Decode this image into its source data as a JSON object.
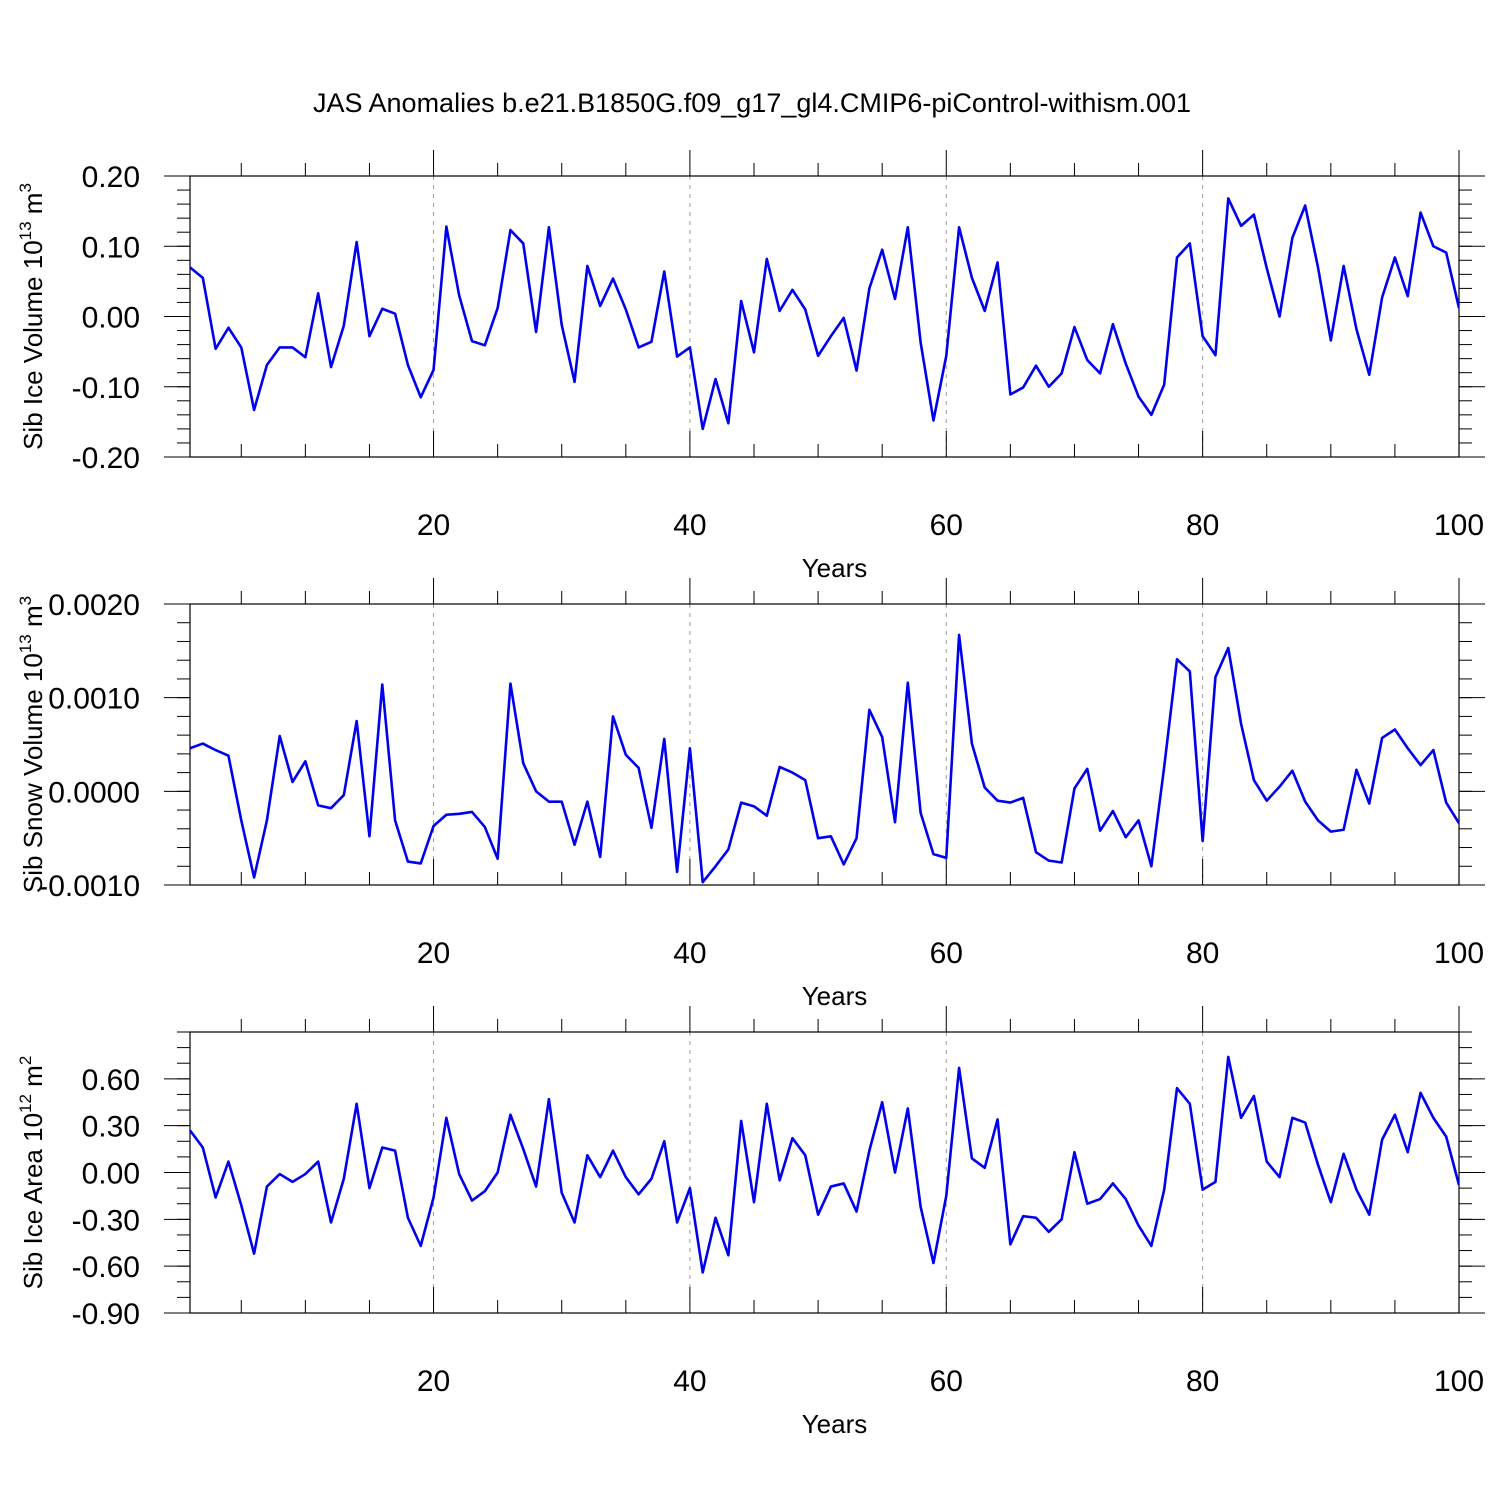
{
  "figure": {
    "title": "JAS Anomalies b.e21.B1850G.f09_g17_gl4.CMIP6-piControl-withism.001"
  },
  "chart_data": [
    {
      "type": "line",
      "xlabel": "Years",
      "ylabel": "Sib Ice Volume 10",
      "ylabel_exp": "13",
      "ylabel_unit": " m",
      "ylabel_unit_exp": "3",
      "xlim": [
        1,
        100
      ],
      "ylim": [
        -0.2,
        0.2
      ],
      "xticks": [
        20,
        40,
        60,
        80,
        100
      ],
      "yticks": [
        -0.2,
        -0.1,
        0.0,
        0.1,
        0.2
      ],
      "ytick_labels": [
        "-0.20",
        "-0.10",
        "0.00",
        "0.10",
        "0.20"
      ],
      "yminor_step": 0.02,
      "grid_x": [
        20,
        40,
        60,
        80
      ],
      "grid": "vertical dashed",
      "legend": "none",
      "color": "#0000ee",
      "x_start": 1,
      "values": [
        0.07,
        0.055,
        -0.046,
        -0.016,
        -0.044,
        -0.133,
        -0.069,
        -0.044,
        -0.044,
        -0.058,
        0.033,
        -0.072,
        -0.013,
        0.106,
        -0.028,
        0.011,
        0.004,
        -0.069,
        -0.115,
        -0.076,
        0.128,
        0.03,
        -0.035,
        -0.041,
        0.012,
        0.123,
        0.104,
        -0.022,
        0.127,
        -0.012,
        -0.093,
        0.072,
        0.015,
        0.054,
        0.01,
        -0.044,
        -0.036,
        0.064,
        -0.057,
        -0.044,
        -0.16,
        -0.089,
        -0.152,
        0.022,
        -0.051,
        0.082,
        0.008,
        0.038,
        0.01,
        -0.056,
        -0.028,
        -0.002,
        -0.077,
        0.04,
        0.095,
        0.025,
        0.127,
        -0.037,
        -0.148,
        -0.056,
        0.127,
        0.055,
        0.008,
        0.077,
        -0.111,
        -0.101,
        -0.07,
        -0.1,
        -0.081,
        -0.015,
        -0.062,
        -0.081,
        -0.011,
        -0.067,
        -0.114,
        -0.14,
        -0.097,
        0.084,
        0.104,
        -0.028,
        -0.055,
        0.168,
        0.129,
        0.145,
        0.069,
        0.0,
        0.112,
        0.158,
        0.07,
        -0.034,
        0.072,
        -0.018,
        -0.083,
        0.027,
        0.084,
        0.029,
        0.148,
        0.1,
        0.091,
        0.012
      ]
    },
    {
      "type": "line",
      "xlabel": "Years",
      "ylabel": "Sib Snow Volume 10",
      "ylabel_exp": "13",
      "ylabel_unit": " m",
      "ylabel_unit_exp": "3",
      "xlim": [
        1,
        100
      ],
      "ylim": [
        -0.001,
        0.002
      ],
      "xticks": [
        20,
        40,
        60,
        80,
        100
      ],
      "yticks": [
        -0.001,
        0.0,
        0.001,
        0.002
      ],
      "ytick_labels": [
        "-0.0010",
        "0.0000",
        "0.0010",
        "0.0020"
      ],
      "yminor_step": 0.0002,
      "grid_x": [
        20,
        40,
        60,
        80
      ],
      "grid": "vertical dashed",
      "legend": "none",
      "color": "#0000ee",
      "x_start": 1,
      "values": [
        0.00046,
        0.00051,
        0.00044,
        0.00038,
        -0.00031,
        -0.00092,
        -0.00031,
        0.00059,
        0.0001,
        0.00032,
        -0.00015,
        -0.00018,
        -4e-05,
        0.00075,
        -0.00048,
        0.00114,
        -0.00031,
        -0.00075,
        -0.00077,
        -0.00037,
        -0.00025,
        -0.00024,
        -0.00022,
        -0.00038,
        -0.00072,
        0.00115,
        0.0003,
        0.0,
        -0.00011,
        -0.00011,
        -0.00057,
        -0.00011,
        -0.0007,
        0.0008,
        0.00039,
        0.00025,
        -0.00039,
        0.00056,
        -0.00086,
        0.00046,
        -0.00097,
        -0.0008,
        -0.00062,
        -0.00012,
        -0.00016,
        -0.00026,
        0.00026,
        0.0002,
        0.00012,
        -0.0005,
        -0.00048,
        -0.00078,
        -0.0005,
        0.00087,
        0.00058,
        -0.00033,
        0.00116,
        -0.00023,
        -0.00067,
        -0.00071,
        0.00167,
        0.00051,
        4e-05,
        -0.0001,
        -0.00012,
        -7e-05,
        -0.00065,
        -0.00074,
        -0.00076,
        3e-05,
        0.00024,
        -0.00042,
        -0.00021,
        -0.00049,
        -0.00031,
        -0.0008,
        0.00026,
        0.00141,
        0.00128,
        -0.00053,
        0.00122,
        0.00153,
        0.00072,
        0.00012,
        -0.0001,
        5e-05,
        0.00022,
        -0.00011,
        -0.00031,
        -0.00043,
        -0.00041,
        0.00023,
        -0.00013,
        0.00057,
        0.00066,
        0.00046,
        0.00028,
        0.00044,
        -0.00012,
        -0.00034
      ]
    },
    {
      "type": "line",
      "xlabel": "Years",
      "ylabel": "Sib Ice Area 10",
      "ylabel_exp": "12",
      "ylabel_unit": " m",
      "ylabel_unit_exp": "2",
      "xlim": [
        1,
        100
      ],
      "ylim": [
        -0.9,
        0.9
      ],
      "xticks": [
        20,
        40,
        60,
        80,
        100
      ],
      "yticks": [
        -0.9,
        -0.6,
        -0.3,
        0.0,
        0.3,
        0.6
      ],
      "ytick_labels": [
        "-0.90",
        "-0.60",
        "-0.30",
        "0.00",
        "0.30",
        "0.60"
      ],
      "yminor_step": 0.1,
      "grid_x": [
        20,
        40,
        60,
        80
      ],
      "grid": "vertical dashed",
      "legend": "none",
      "color": "#0000ee",
      "x_start": 1,
      "values": [
        0.27,
        0.16,
        -0.16,
        0.07,
        -0.21,
        -0.52,
        -0.09,
        -0.01,
        -0.06,
        -0.01,
        0.07,
        -0.32,
        -0.04,
        0.44,
        -0.1,
        0.16,
        0.14,
        -0.29,
        -0.47,
        -0.16,
        0.35,
        -0.01,
        -0.18,
        -0.12,
        0.0,
        0.37,
        0.15,
        -0.09,
        0.47,
        -0.13,
        -0.32,
        0.11,
        -0.03,
        0.14,
        -0.03,
        -0.14,
        -0.04,
        0.2,
        -0.32,
        -0.1,
        -0.64,
        -0.29,
        -0.53,
        0.33,
        -0.19,
        0.44,
        -0.05,
        0.22,
        0.11,
        -0.27,
        -0.09,
        -0.07,
        -0.25,
        0.14,
        0.45,
        0.0,
        0.41,
        -0.22,
        -0.58,
        -0.15,
        0.67,
        0.09,
        0.03,
        0.34,
        -0.46,
        -0.28,
        -0.29,
        -0.38,
        -0.3,
        0.13,
        -0.2,
        -0.17,
        -0.07,
        -0.17,
        -0.34,
        -0.47,
        -0.11,
        0.54,
        0.44,
        -0.11,
        -0.06,
        0.74,
        0.35,
        0.49,
        0.07,
        -0.03,
        0.35,
        0.32,
        0.05,
        -0.19,
        0.12,
        -0.11,
        -0.27,
        0.21,
        0.37,
        0.13,
        0.51,
        0.35,
        0.23,
        -0.08
      ]
    }
  ]
}
